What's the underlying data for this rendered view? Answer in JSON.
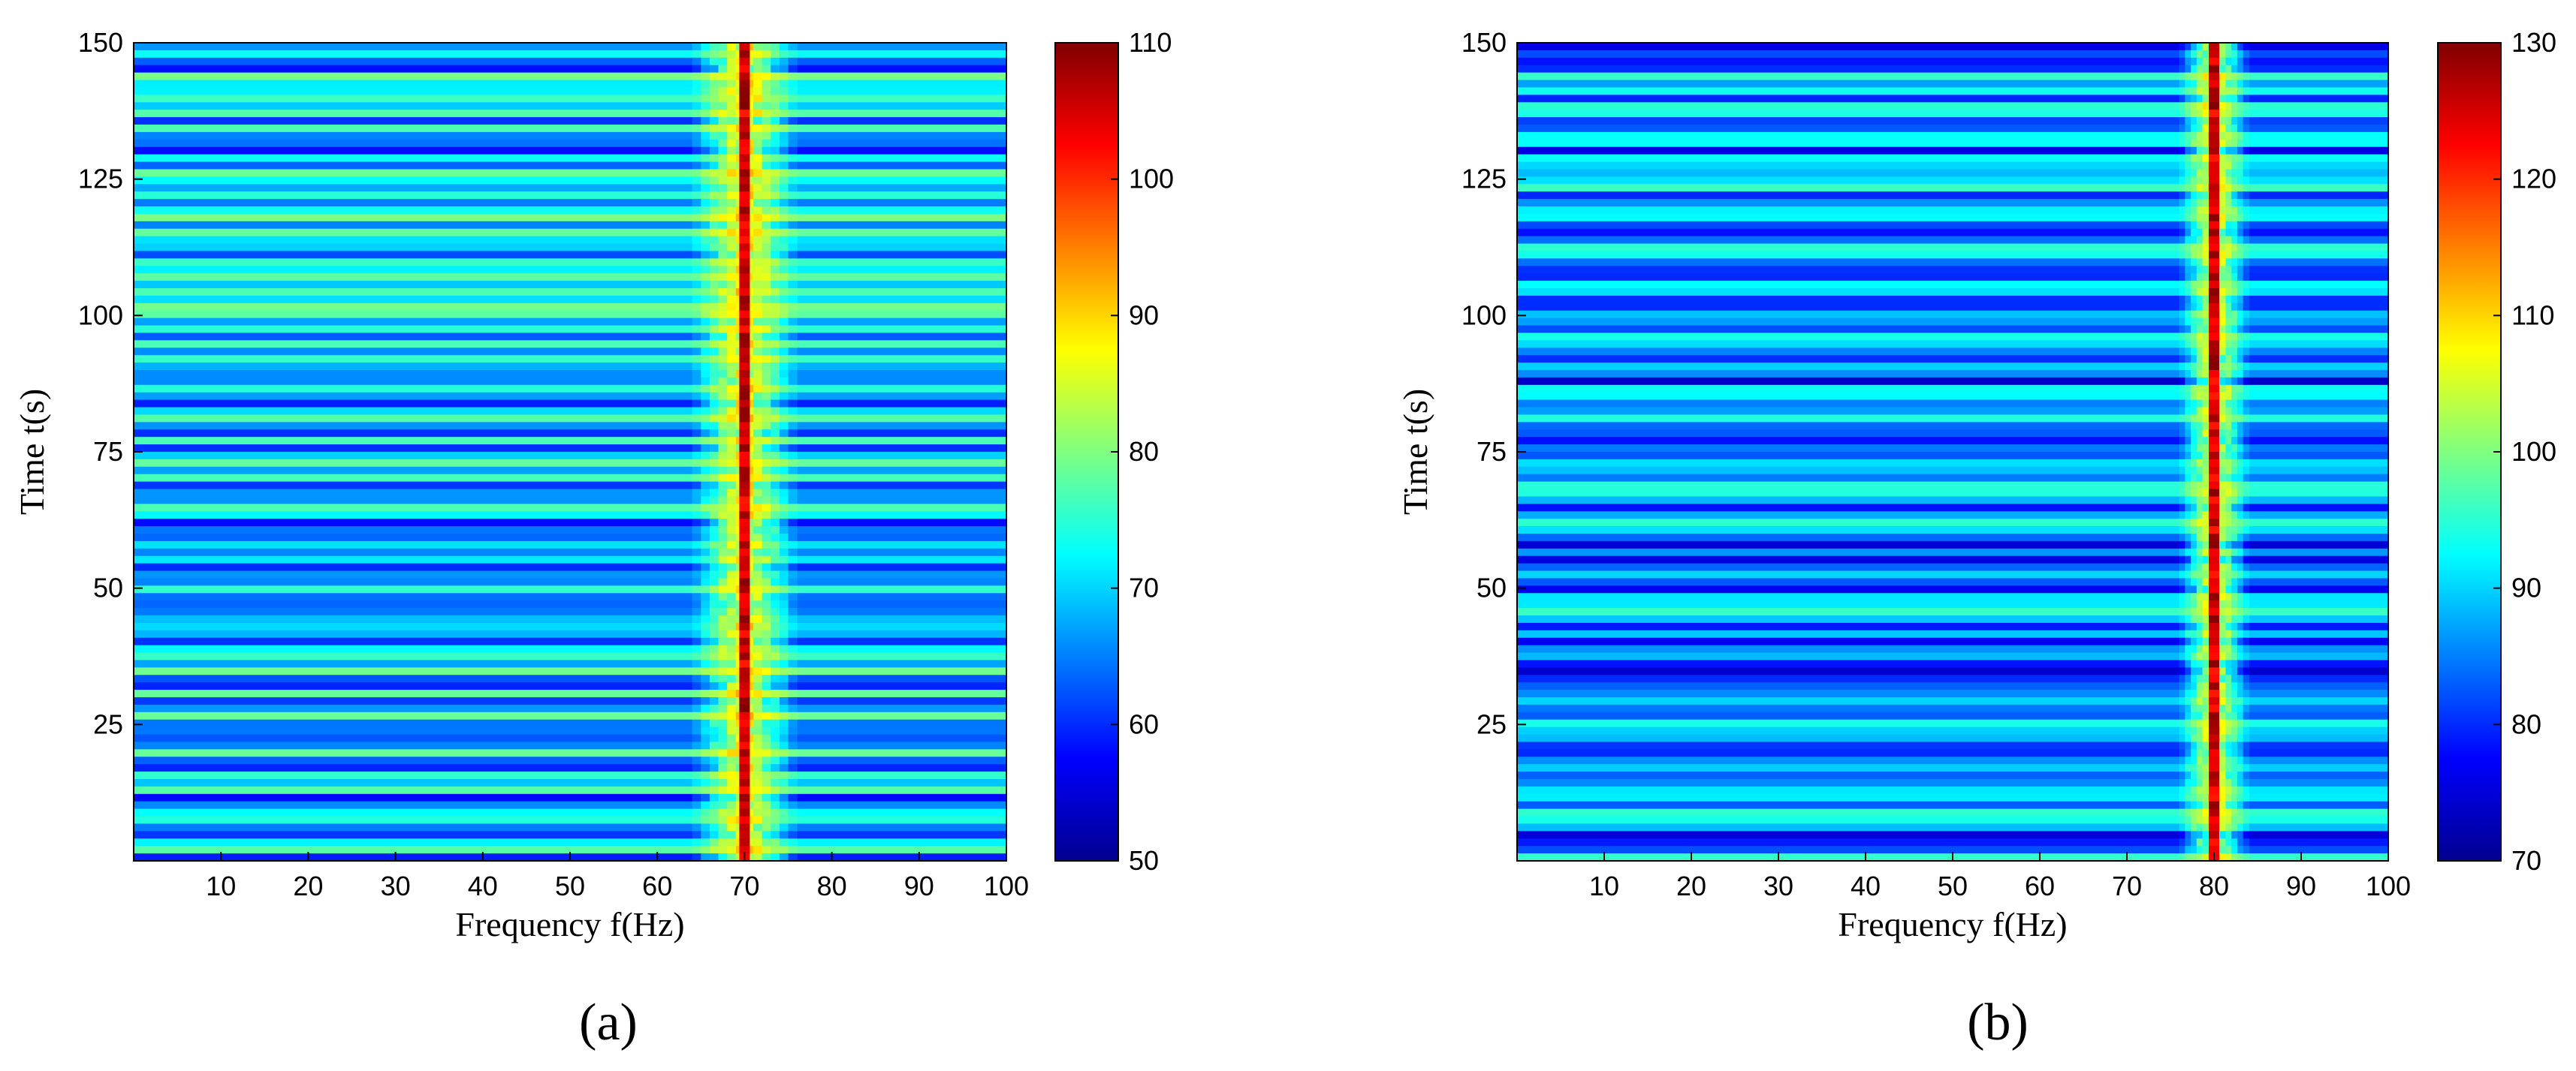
{
  "chart_data": [
    {
      "type": "heatmap",
      "panel_label": "(a)",
      "xlabel": "Frequency f(Hz)",
      "ylabel": "Time t(s)",
      "xlim": [
        0,
        100
      ],
      "ylim": [
        0,
        150
      ],
      "xticks": [
        10,
        20,
        30,
        40,
        50,
        60,
        70,
        80,
        90,
        100
      ],
      "yticks": [
        25,
        50,
        75,
        100,
        125,
        150
      ],
      "colorbar": {
        "range": [
          50,
          110
        ],
        "ticks": [
          50,
          60,
          70,
          80,
          90,
          100,
          110
        ],
        "colormap": "jet"
      },
      "dominant_frequency_hz": 70,
      "band_hz": [
        64,
        76
      ],
      "peak_value": 110,
      "background_range": [
        62,
        80
      ]
    },
    {
      "type": "heatmap",
      "panel_label": "(b)",
      "xlabel": "Frequency f(Hz)",
      "ylabel": "Time t(s)",
      "xlim": [
        0,
        100
      ],
      "ylim": [
        0,
        150
      ],
      "xticks": [
        10,
        20,
        30,
        40,
        50,
        60,
        70,
        80,
        90,
        100
      ],
      "yticks": [
        25,
        50,
        75,
        100,
        125,
        150
      ],
      "colorbar": {
        "range": [
          70,
          130
        ],
        "ticks": [
          70,
          80,
          90,
          100,
          110,
          120,
          130
        ],
        "colormap": "jet"
      },
      "dominant_frequency_hz": 80,
      "band_hz": [
        76,
        84
      ],
      "peak_value": 130,
      "background_range": [
        78,
        96
      ]
    }
  ]
}
